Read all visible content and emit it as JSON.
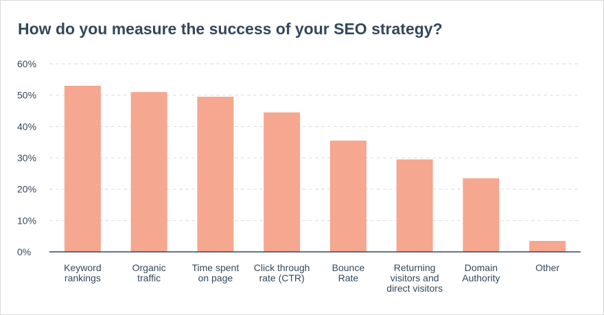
{
  "title": "How do you measure the success of your SEO strategy?",
  "colors": {
    "bar": "#f5a78f",
    "axis": "#33475b",
    "grid": "#d7dde3",
    "text": "#33475b"
  },
  "chart_data": {
    "type": "bar",
    "title": "How do you measure the success of your SEO strategy?",
    "xlabel": "",
    "ylabel": "",
    "ylim": [
      0,
      60
    ],
    "yticks": [
      "0%",
      "10%",
      "20%",
      "30%",
      "40%",
      "50%",
      "60%"
    ],
    "grid": true,
    "categories": [
      [
        "Keyword",
        "rankings"
      ],
      [
        "Organic",
        "traffic"
      ],
      [
        "Time spent",
        "on page"
      ],
      [
        "Click through",
        "rate (CTR)"
      ],
      [
        "Bounce",
        "Rate"
      ],
      [
        "Returning",
        "visitors and",
        "direct visitors"
      ],
      [
        "Domain",
        "Authority"
      ],
      [
        "Other"
      ]
    ],
    "values": [
      53,
      51,
      49.5,
      44.5,
      35.5,
      29.5,
      23.5,
      3.5
    ]
  }
}
